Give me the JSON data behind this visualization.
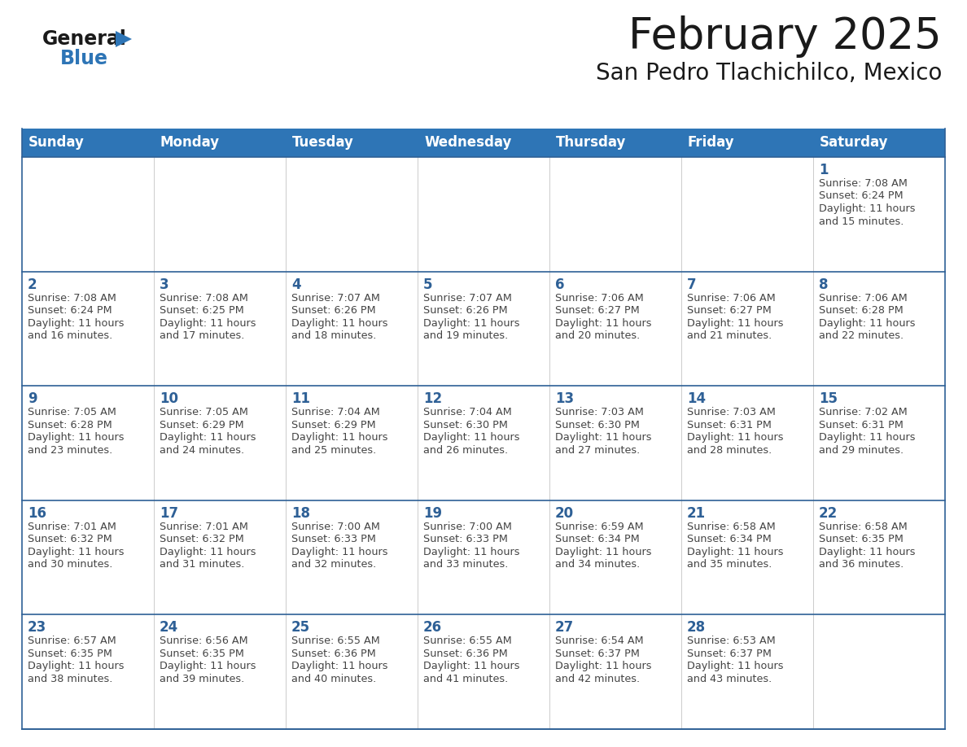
{
  "title": "February 2025",
  "subtitle": "San Pedro Tlachichilco, Mexico",
  "header_bg": "#2e75b6",
  "header_text_color": "#ffffff",
  "cell_bg": "#ffffff",
  "row_sep_color": "#2e6096",
  "col_sep_color": "#cccccc",
  "outer_border_color": "#2e6096",
  "text_color": "#444444",
  "day_number_color": "#2e6096",
  "days_of_week": [
    "Sunday",
    "Monday",
    "Tuesday",
    "Wednesday",
    "Thursday",
    "Friday",
    "Saturday"
  ],
  "weeks": [
    [
      {
        "day": "",
        "sunrise": "",
        "sunset": "",
        "daylight_1": "",
        "daylight_2": ""
      },
      {
        "day": "",
        "sunrise": "",
        "sunset": "",
        "daylight_1": "",
        "daylight_2": ""
      },
      {
        "day": "",
        "sunrise": "",
        "sunset": "",
        "daylight_1": "",
        "daylight_2": ""
      },
      {
        "day": "",
        "sunrise": "",
        "sunset": "",
        "daylight_1": "",
        "daylight_2": ""
      },
      {
        "day": "",
        "sunrise": "",
        "sunset": "",
        "daylight_1": "",
        "daylight_2": ""
      },
      {
        "day": "",
        "sunrise": "",
        "sunset": "",
        "daylight_1": "",
        "daylight_2": ""
      },
      {
        "day": "1",
        "sunrise": "Sunrise: 7:08 AM",
        "sunset": "Sunset: 6:24 PM",
        "daylight_1": "Daylight: 11 hours",
        "daylight_2": "and 15 minutes."
      }
    ],
    [
      {
        "day": "2",
        "sunrise": "Sunrise: 7:08 AM",
        "sunset": "Sunset: 6:24 PM",
        "daylight_1": "Daylight: 11 hours",
        "daylight_2": "and 16 minutes."
      },
      {
        "day": "3",
        "sunrise": "Sunrise: 7:08 AM",
        "sunset": "Sunset: 6:25 PM",
        "daylight_1": "Daylight: 11 hours",
        "daylight_2": "and 17 minutes."
      },
      {
        "day": "4",
        "sunrise": "Sunrise: 7:07 AM",
        "sunset": "Sunset: 6:26 PM",
        "daylight_1": "Daylight: 11 hours",
        "daylight_2": "and 18 minutes."
      },
      {
        "day": "5",
        "sunrise": "Sunrise: 7:07 AM",
        "sunset": "Sunset: 6:26 PM",
        "daylight_1": "Daylight: 11 hours",
        "daylight_2": "and 19 minutes."
      },
      {
        "day": "6",
        "sunrise": "Sunrise: 7:06 AM",
        "sunset": "Sunset: 6:27 PM",
        "daylight_1": "Daylight: 11 hours",
        "daylight_2": "and 20 minutes."
      },
      {
        "day": "7",
        "sunrise": "Sunrise: 7:06 AM",
        "sunset": "Sunset: 6:27 PM",
        "daylight_1": "Daylight: 11 hours",
        "daylight_2": "and 21 minutes."
      },
      {
        "day": "8",
        "sunrise": "Sunrise: 7:06 AM",
        "sunset": "Sunset: 6:28 PM",
        "daylight_1": "Daylight: 11 hours",
        "daylight_2": "and 22 minutes."
      }
    ],
    [
      {
        "day": "9",
        "sunrise": "Sunrise: 7:05 AM",
        "sunset": "Sunset: 6:28 PM",
        "daylight_1": "Daylight: 11 hours",
        "daylight_2": "and 23 minutes."
      },
      {
        "day": "10",
        "sunrise": "Sunrise: 7:05 AM",
        "sunset": "Sunset: 6:29 PM",
        "daylight_1": "Daylight: 11 hours",
        "daylight_2": "and 24 minutes."
      },
      {
        "day": "11",
        "sunrise": "Sunrise: 7:04 AM",
        "sunset": "Sunset: 6:29 PM",
        "daylight_1": "Daylight: 11 hours",
        "daylight_2": "and 25 minutes."
      },
      {
        "day": "12",
        "sunrise": "Sunrise: 7:04 AM",
        "sunset": "Sunset: 6:30 PM",
        "daylight_1": "Daylight: 11 hours",
        "daylight_2": "and 26 minutes."
      },
      {
        "day": "13",
        "sunrise": "Sunrise: 7:03 AM",
        "sunset": "Sunset: 6:30 PM",
        "daylight_1": "Daylight: 11 hours",
        "daylight_2": "and 27 minutes."
      },
      {
        "day": "14",
        "sunrise": "Sunrise: 7:03 AM",
        "sunset": "Sunset: 6:31 PM",
        "daylight_1": "Daylight: 11 hours",
        "daylight_2": "and 28 minutes."
      },
      {
        "day": "15",
        "sunrise": "Sunrise: 7:02 AM",
        "sunset": "Sunset: 6:31 PM",
        "daylight_1": "Daylight: 11 hours",
        "daylight_2": "and 29 minutes."
      }
    ],
    [
      {
        "day": "16",
        "sunrise": "Sunrise: 7:01 AM",
        "sunset": "Sunset: 6:32 PM",
        "daylight_1": "Daylight: 11 hours",
        "daylight_2": "and 30 minutes."
      },
      {
        "day": "17",
        "sunrise": "Sunrise: 7:01 AM",
        "sunset": "Sunset: 6:32 PM",
        "daylight_1": "Daylight: 11 hours",
        "daylight_2": "and 31 minutes."
      },
      {
        "day": "18",
        "sunrise": "Sunrise: 7:00 AM",
        "sunset": "Sunset: 6:33 PM",
        "daylight_1": "Daylight: 11 hours",
        "daylight_2": "and 32 minutes."
      },
      {
        "day": "19",
        "sunrise": "Sunrise: 7:00 AM",
        "sunset": "Sunset: 6:33 PM",
        "daylight_1": "Daylight: 11 hours",
        "daylight_2": "and 33 minutes."
      },
      {
        "day": "20",
        "sunrise": "Sunrise: 6:59 AM",
        "sunset": "Sunset: 6:34 PM",
        "daylight_1": "Daylight: 11 hours",
        "daylight_2": "and 34 minutes."
      },
      {
        "day": "21",
        "sunrise": "Sunrise: 6:58 AM",
        "sunset": "Sunset: 6:34 PM",
        "daylight_1": "Daylight: 11 hours",
        "daylight_2": "and 35 minutes."
      },
      {
        "day": "22",
        "sunrise": "Sunrise: 6:58 AM",
        "sunset": "Sunset: 6:35 PM",
        "daylight_1": "Daylight: 11 hours",
        "daylight_2": "and 36 minutes."
      }
    ],
    [
      {
        "day": "23",
        "sunrise": "Sunrise: 6:57 AM",
        "sunset": "Sunset: 6:35 PM",
        "daylight_1": "Daylight: 11 hours",
        "daylight_2": "and 38 minutes."
      },
      {
        "day": "24",
        "sunrise": "Sunrise: 6:56 AM",
        "sunset": "Sunset: 6:35 PM",
        "daylight_1": "Daylight: 11 hours",
        "daylight_2": "and 39 minutes."
      },
      {
        "day": "25",
        "sunrise": "Sunrise: 6:55 AM",
        "sunset": "Sunset: 6:36 PM",
        "daylight_1": "Daylight: 11 hours",
        "daylight_2": "and 40 minutes."
      },
      {
        "day": "26",
        "sunrise": "Sunrise: 6:55 AM",
        "sunset": "Sunset: 6:36 PM",
        "daylight_1": "Daylight: 11 hours",
        "daylight_2": "and 41 minutes."
      },
      {
        "day": "27",
        "sunrise": "Sunrise: 6:54 AM",
        "sunset": "Sunset: 6:37 PM",
        "daylight_1": "Daylight: 11 hours",
        "daylight_2": "and 42 minutes."
      },
      {
        "day": "28",
        "sunrise": "Sunrise: 6:53 AM",
        "sunset": "Sunset: 6:37 PM",
        "daylight_1": "Daylight: 11 hours",
        "daylight_2": "and 43 minutes."
      },
      {
        "day": "",
        "sunrise": "",
        "sunset": "",
        "daylight_1": "",
        "daylight_2": ""
      }
    ]
  ],
  "logo_color1": "#1a1a1a",
  "logo_color2": "#2e75b6",
  "logo_triangle_color": "#2e75b6",
  "title_color": "#1a1a1a",
  "subtitle_color": "#1a1a1a"
}
